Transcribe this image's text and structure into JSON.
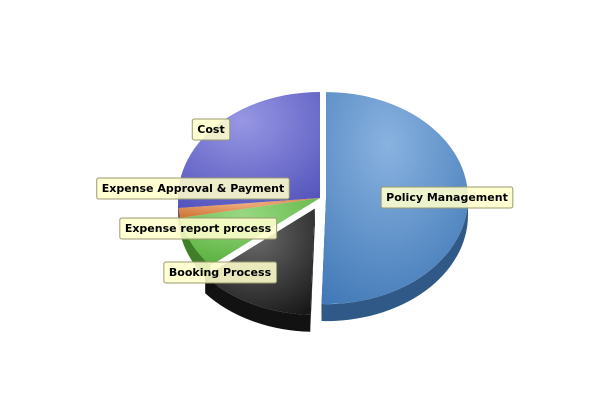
{
  "chart_data": {
    "type": "pie",
    "title": "",
    "style": "3d-exploded",
    "legend": "none",
    "slices": [
      {
        "label": "Policy Management",
        "value": 50.5,
        "color": "#4a89d0"
      },
      {
        "label": "Booking Process",
        "value": 13.5,
        "color": "#1c1c1c"
      },
      {
        "label": "Expense report process",
        "value": 8.0,
        "color": "#5fc43e"
      },
      {
        "label": "Expense Approval & Payment",
        "value": 1.5,
        "color": "#e8833a"
      },
      {
        "label": "Cost",
        "value": 26.5,
        "color": "#5f5fd6"
      }
    ]
  }
}
